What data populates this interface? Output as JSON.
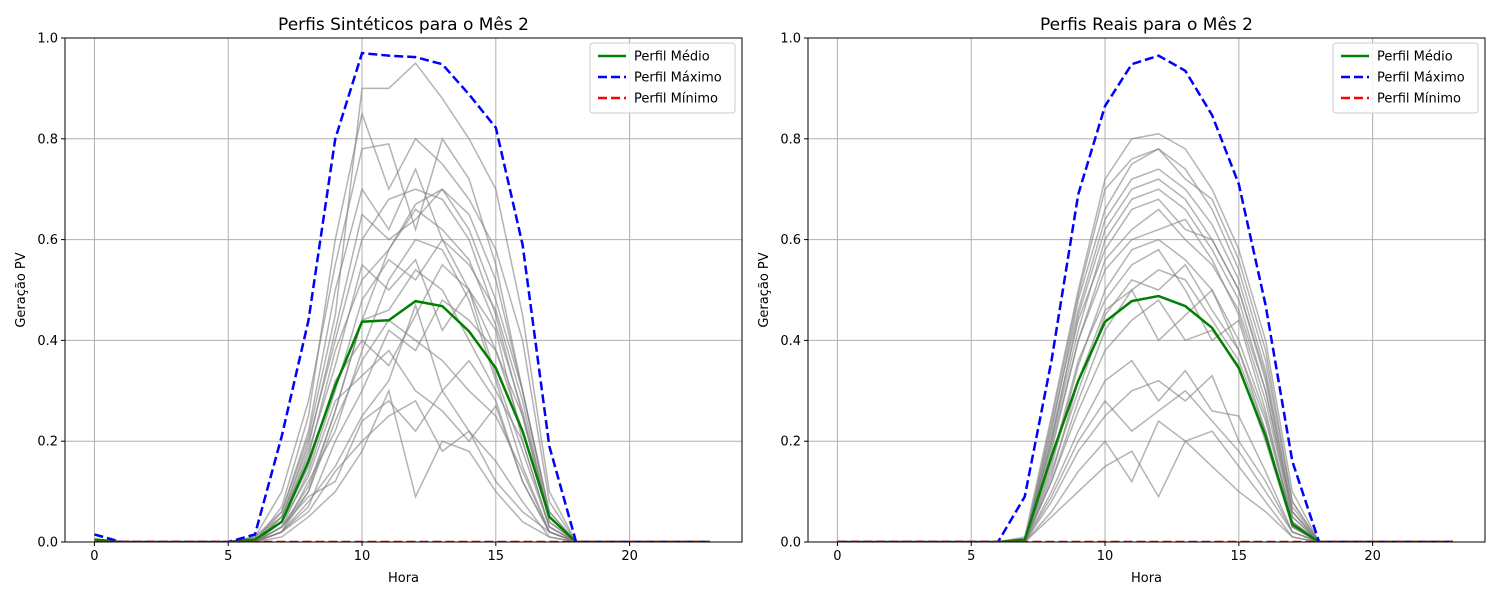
{
  "chart_data": [
    {
      "type": "line",
      "title": "Perfis Sintéticos para o Mês 2",
      "xlabel": "Hora",
      "ylabel": "Geração PV",
      "xlim": [
        -1.1,
        24.2
      ],
      "ylim": [
        0,
        1.0
      ],
      "xticks": [
        0,
        5,
        10,
        15,
        20
      ],
      "yticks": [
        0.0,
        0.2,
        0.4,
        0.6,
        0.8,
        1.0
      ],
      "grid": true,
      "legend_position": "top-right",
      "x": [
        0,
        1,
        2,
        3,
        4,
        5,
        6,
        7,
        8,
        9,
        10,
        11,
        12,
        13,
        14,
        15,
        16,
        17,
        18,
        19,
        20,
        21,
        22,
        23
      ],
      "series": [
        {
          "name": "Perfil Médio",
          "color": "#008000",
          "style": "solid",
          "values": [
            0.005,
            0,
            0,
            0,
            0,
            0,
            0.005,
            0.04,
            0.16,
            0.31,
            0.437,
            0.44,
            0.478,
            0.468,
            0.418,
            0.345,
            0.22,
            0.05,
            0,
            0,
            0,
            0,
            0,
            0
          ]
        },
        {
          "name": "Perfil Máximo",
          "color": "#0000ff",
          "style": "dashed",
          "values": [
            0.015,
            0,
            0,
            0,
            0,
            0,
            0.015,
            0.21,
            0.44,
            0.8,
            0.97,
            0.965,
            0.962,
            0.948,
            0.888,
            0.822,
            0.59,
            0.19,
            0,
            0,
            0,
            0,
            0,
            0
          ]
        },
        {
          "name": "Perfil Mínimo",
          "color": "#ff0000",
          "style": "dashed",
          "values": [
            0,
            0,
            0,
            0,
            0,
            0,
            0,
            0,
            0,
            0,
            0,
            0,
            0,
            0,
            0,
            0,
            0,
            0,
            0,
            0,
            0,
            0,
            0,
            0
          ]
        }
      ],
      "samples": [
        [
          0,
          0,
          0,
          0,
          0,
          0,
          0,
          0.03,
          0.1,
          0.26,
          0.44,
          0.58,
          0.67,
          0.7,
          0.65,
          0.52,
          0.3,
          0.06,
          0,
          0,
          0,
          0,
          0,
          0
        ],
        [
          0,
          0,
          0,
          0,
          0,
          0,
          0.01,
          0.06,
          0.21,
          0.45,
          0.9,
          0.9,
          0.95,
          0.88,
          0.8,
          0.7,
          0.45,
          0.1,
          0,
          0,
          0,
          0,
          0,
          0
        ],
        [
          0,
          0,
          0,
          0,
          0,
          0,
          0,
          0.02,
          0.08,
          0.15,
          0.25,
          0.32,
          0.47,
          0.3,
          0.22,
          0.12,
          0.06,
          0.02,
          0,
          0,
          0,
          0,
          0,
          0
        ],
        [
          0,
          0,
          0,
          0,
          0,
          0,
          0.01,
          0.1,
          0.28,
          0.55,
          0.78,
          0.79,
          0.62,
          0.8,
          0.72,
          0.55,
          0.3,
          0.05,
          0,
          0,
          0,
          0,
          0,
          0
        ],
        [
          0,
          0,
          0,
          0,
          0,
          0,
          0,
          0.04,
          0.15,
          0.32,
          0.4,
          0.35,
          0.45,
          0.55,
          0.5,
          0.42,
          0.2,
          0.03,
          0,
          0,
          0,
          0,
          0,
          0
        ],
        [
          0,
          0,
          0,
          0,
          0,
          0,
          0,
          0.02,
          0.12,
          0.22,
          0.38,
          0.52,
          0.6,
          0.58,
          0.48,
          0.32,
          0.15,
          0.02,
          0,
          0,
          0,
          0,
          0,
          0
        ],
        [
          0,
          0,
          0,
          0,
          0,
          0,
          0,
          0.05,
          0.2,
          0.4,
          0.6,
          0.68,
          0.7,
          0.68,
          0.6,
          0.45,
          0.25,
          0.05,
          0,
          0,
          0,
          0,
          0,
          0
        ],
        [
          0,
          0,
          0,
          0,
          0,
          0,
          0,
          0.03,
          0.09,
          0.12,
          0.24,
          0.28,
          0.22,
          0.3,
          0.36,
          0.28,
          0.12,
          0.02,
          0,
          0,
          0,
          0,
          0,
          0
        ],
        [
          0,
          0,
          0,
          0,
          0,
          0,
          0,
          0.06,
          0.22,
          0.5,
          0.7,
          0.62,
          0.74,
          0.6,
          0.5,
          0.38,
          0.22,
          0.05,
          0,
          0,
          0,
          0,
          0,
          0
        ],
        [
          0,
          0,
          0,
          0,
          0,
          0,
          0,
          0.02,
          0.07,
          0.2,
          0.3,
          0.42,
          0.38,
          0.48,
          0.44,
          0.38,
          0.25,
          0.04,
          0,
          0,
          0,
          0,
          0,
          0
        ],
        [
          0,
          0,
          0,
          0,
          0,
          0,
          0,
          0.04,
          0.18,
          0.35,
          0.55,
          0.5,
          0.56,
          0.42,
          0.5,
          0.33,
          0.18,
          0.03,
          0,
          0,
          0,
          0,
          0,
          0
        ],
        [
          0,
          0,
          0,
          0,
          0,
          0,
          0,
          0.01,
          0.05,
          0.1,
          0.18,
          0.3,
          0.09,
          0.2,
          0.18,
          0.1,
          0.04,
          0.01,
          0,
          0,
          0,
          0,
          0,
          0
        ],
        [
          0,
          0,
          0,
          0,
          0,
          0,
          0,
          0.07,
          0.25,
          0.6,
          0.85,
          0.7,
          0.8,
          0.75,
          0.68,
          0.58,
          0.4,
          0.08,
          0,
          0,
          0,
          0,
          0,
          0
        ],
        [
          0,
          0,
          0,
          0,
          0,
          0,
          0,
          0.03,
          0.14,
          0.3,
          0.48,
          0.56,
          0.52,
          0.6,
          0.55,
          0.46,
          0.28,
          0.04,
          0,
          0,
          0,
          0,
          0,
          0
        ],
        [
          0,
          0,
          0,
          0,
          0,
          0,
          0,
          0.02,
          0.1,
          0.24,
          0.36,
          0.44,
          0.4,
          0.36,
          0.3,
          0.25,
          0.14,
          0.02,
          0,
          0,
          0,
          0,
          0,
          0
        ],
        [
          0,
          0,
          0,
          0,
          0,
          0,
          0.01,
          0.05,
          0.19,
          0.42,
          0.65,
          0.6,
          0.64,
          0.7,
          0.62,
          0.48,
          0.3,
          0.06,
          0,
          0,
          0,
          0,
          0,
          0
        ],
        [
          0,
          0,
          0,
          0,
          0,
          0,
          0,
          0.04,
          0.13,
          0.28,
          0.33,
          0.38,
          0.3,
          0.26,
          0.2,
          0.27,
          0.12,
          0.02,
          0,
          0,
          0,
          0,
          0,
          0
        ],
        [
          0,
          0,
          0,
          0,
          0,
          0,
          0,
          0.02,
          0.06,
          0.14,
          0.2,
          0.25,
          0.28,
          0.18,
          0.22,
          0.16,
          0.08,
          0.01,
          0,
          0,
          0,
          0,
          0,
          0
        ],
        [
          0,
          0,
          0,
          0,
          0,
          0,
          0,
          0.05,
          0.17,
          0.38,
          0.52,
          0.58,
          0.66,
          0.62,
          0.56,
          0.43,
          0.26,
          0.05,
          0,
          0,
          0,
          0,
          0,
          0
        ],
        [
          0,
          0,
          0,
          0,
          0,
          0,
          0,
          0.03,
          0.11,
          0.26,
          0.44,
          0.46,
          0.54,
          0.5,
          0.4,
          0.3,
          0.2,
          0.03,
          0,
          0,
          0,
          0,
          0,
          0
        ]
      ]
    },
    {
      "type": "line",
      "title": "Perfis Reais para o Mês 2",
      "xlabel": "Hora",
      "ylabel": "Geração PV",
      "xlim": [
        -1.1,
        24.2
      ],
      "ylim": [
        0,
        1.0
      ],
      "xticks": [
        0,
        5,
        10,
        15,
        20
      ],
      "yticks": [
        0.0,
        0.2,
        0.4,
        0.6,
        0.8,
        1.0
      ],
      "grid": true,
      "legend_position": "top-right",
      "x": [
        0,
        1,
        2,
        3,
        4,
        5,
        6,
        7,
        8,
        9,
        10,
        11,
        12,
        13,
        14,
        15,
        16,
        17,
        18,
        19,
        20,
        21,
        22,
        23
      ],
      "series": [
        {
          "name": "Perfil Médio",
          "color": "#008000",
          "style": "solid",
          "values": [
            0,
            0,
            0,
            0,
            0,
            0,
            0,
            0.005,
            0.17,
            0.32,
            0.437,
            0.478,
            0.488,
            0.468,
            0.425,
            0.345,
            0.21,
            0.035,
            0,
            0,
            0,
            0,
            0,
            0
          ]
        },
        {
          "name": "Perfil Máximo",
          "color": "#0000ff",
          "style": "dashed",
          "values": [
            0,
            0,
            0,
            0,
            0,
            0,
            0,
            0.09,
            0.36,
            0.69,
            0.865,
            0.948,
            0.965,
            0.935,
            0.847,
            0.71,
            0.47,
            0.16,
            0,
            0,
            0,
            0,
            0,
            0
          ]
        },
        {
          "name": "Perfil Mínimo",
          "color": "#ff0000",
          "style": "dashed",
          "values": [
            0,
            0,
            0,
            0,
            0,
            0,
            0,
            0,
            0,
            0,
            0,
            0,
            0,
            0,
            0,
            0,
            0,
            0,
            0,
            0,
            0,
            0,
            0,
            0
          ]
        }
      ],
      "samples": [
        [
          0,
          0,
          0,
          0,
          0,
          0,
          0,
          0.01,
          0.25,
          0.5,
          0.72,
          0.8,
          0.81,
          0.78,
          0.7,
          0.58,
          0.4,
          0.1,
          0,
          0,
          0,
          0,
          0,
          0
        ],
        [
          0,
          0,
          0,
          0,
          0,
          0,
          0,
          0,
          0.2,
          0.45,
          0.62,
          0.7,
          0.72,
          0.68,
          0.6,
          0.5,
          0.32,
          0.06,
          0,
          0,
          0,
          0,
          0,
          0
        ],
        [
          0,
          0,
          0,
          0,
          0,
          0,
          0,
          0,
          0.15,
          0.35,
          0.5,
          0.58,
          0.6,
          0.56,
          0.5,
          0.4,
          0.25,
          0.04,
          0,
          0,
          0,
          0,
          0,
          0
        ],
        [
          0,
          0,
          0,
          0,
          0,
          0,
          0,
          0,
          0.05,
          0.1,
          0.15,
          0.18,
          0.09,
          0.2,
          0.22,
          0.15,
          0.08,
          0.01,
          0,
          0,
          0,
          0,
          0,
          0
        ],
        [
          0,
          0,
          0,
          0,
          0,
          0,
          0,
          0,
          0.22,
          0.48,
          0.66,
          0.75,
          0.78,
          0.74,
          0.66,
          0.54,
          0.36,
          0.08,
          0,
          0,
          0,
          0,
          0,
          0
        ],
        [
          0,
          0,
          0,
          0,
          0,
          0,
          0,
          0,
          0.18,
          0.4,
          0.56,
          0.62,
          0.66,
          0.6,
          0.55,
          0.46,
          0.3,
          0.05,
          0,
          0,
          0,
          0,
          0,
          0
        ],
        [
          0,
          0,
          0,
          0,
          0,
          0,
          0,
          0,
          0.12,
          0.28,
          0.42,
          0.5,
          0.4,
          0.45,
          0.5,
          0.38,
          0.22,
          0.03,
          0,
          0,
          0,
          0,
          0,
          0
        ],
        [
          0,
          0,
          0,
          0,
          0,
          0,
          0,
          0,
          0.1,
          0.22,
          0.32,
          0.36,
          0.28,
          0.34,
          0.26,
          0.25,
          0.14,
          0.02,
          0,
          0,
          0,
          0,
          0,
          0
        ],
        [
          0,
          0,
          0,
          0,
          0,
          0,
          0,
          0,
          0.2,
          0.42,
          0.6,
          0.68,
          0.7,
          0.66,
          0.58,
          0.48,
          0.3,
          0.06,
          0,
          0,
          0,
          0,
          0,
          0
        ],
        [
          0,
          0,
          0,
          0,
          0,
          0,
          0,
          0,
          0.16,
          0.36,
          0.48,
          0.55,
          0.58,
          0.5,
          0.4,
          0.44,
          0.26,
          0.04,
          0,
          0,
          0,
          0,
          0,
          0
        ],
        [
          0,
          0,
          0,
          0,
          0,
          0,
          0,
          0,
          0.08,
          0.18,
          0.25,
          0.3,
          0.32,
          0.28,
          0.33,
          0.2,
          0.12,
          0.02,
          0,
          0,
          0,
          0,
          0,
          0
        ],
        [
          0,
          0,
          0,
          0,
          0,
          0,
          0,
          0,
          0.23,
          0.46,
          0.64,
          0.72,
          0.74,
          0.7,
          0.63,
          0.52,
          0.34,
          0.07,
          0,
          0,
          0,
          0,
          0,
          0
        ],
        [
          0,
          0,
          0,
          0,
          0,
          0,
          0,
          0,
          0.14,
          0.3,
          0.45,
          0.52,
          0.5,
          0.55,
          0.46,
          0.38,
          0.24,
          0.04,
          0,
          0,
          0,
          0,
          0,
          0
        ],
        [
          0,
          0,
          0,
          0,
          0,
          0,
          0,
          0,
          0.06,
          0.14,
          0.2,
          0.12,
          0.24,
          0.2,
          0.15,
          0.1,
          0.06,
          0.01,
          0,
          0,
          0,
          0,
          0,
          0
        ],
        [
          0,
          0,
          0,
          0,
          0,
          0,
          0,
          0,
          0.21,
          0.44,
          0.58,
          0.66,
          0.68,
          0.62,
          0.6,
          0.5,
          0.33,
          0.06,
          0,
          0,
          0,
          0,
          0,
          0
        ],
        [
          0,
          0,
          0,
          0,
          0,
          0,
          0,
          0,
          0.12,
          0.26,
          0.38,
          0.44,
          0.48,
          0.4,
          0.42,
          0.35,
          0.2,
          0.03,
          0,
          0,
          0,
          0,
          0,
          0
        ],
        [
          0,
          0,
          0,
          0,
          0,
          0,
          0,
          0,
          0.19,
          0.4,
          0.54,
          0.6,
          0.62,
          0.64,
          0.56,
          0.45,
          0.28,
          0.05,
          0,
          0,
          0,
          0,
          0,
          0
        ],
        [
          0,
          0,
          0,
          0,
          0,
          0,
          0,
          0,
          0.09,
          0.2,
          0.28,
          0.22,
          0.26,
          0.3,
          0.24,
          0.18,
          0.1,
          0.02,
          0,
          0,
          0,
          0,
          0,
          0
        ],
        [
          0,
          0,
          0,
          0,
          0,
          0,
          0,
          0,
          0.24,
          0.49,
          0.7,
          0.76,
          0.78,
          0.72,
          0.68,
          0.56,
          0.38,
          0.08,
          0,
          0,
          0,
          0,
          0,
          0
        ],
        [
          0,
          0,
          0,
          0,
          0,
          0,
          0,
          0,
          0.13,
          0.32,
          0.46,
          0.5,
          0.54,
          0.52,
          0.44,
          0.36,
          0.22,
          0.03,
          0,
          0,
          0,
          0,
          0,
          0
        ]
      ]
    }
  ]
}
